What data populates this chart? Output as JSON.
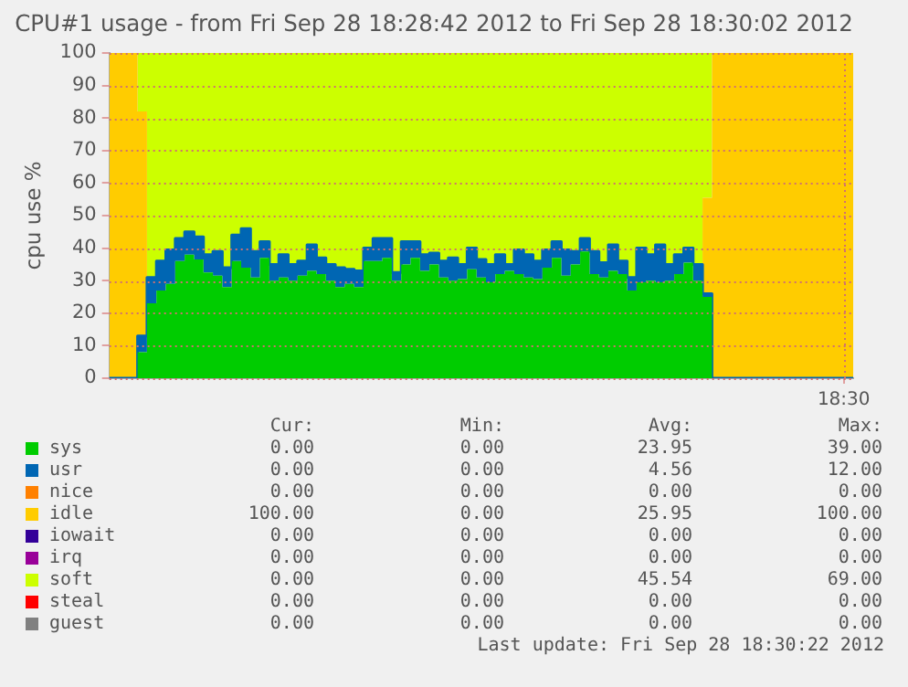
{
  "chart_data": {
    "type": "area",
    "stacked": true,
    "title": "CPU#1 usage - from Fri Sep 28 18:28:42 2012 to Fri Sep 28 18:30:02 2012",
    "ylabel": "cpu use %",
    "categories": [
      null,
      null,
      null,
      null,
      null,
      null,
      null,
      null,
      null,
      null,
      null,
      null,
      null,
      null,
      null,
      null,
      null,
      null,
      null,
      null,
      null,
      null,
      null,
      null,
      null,
      null,
      null,
      null,
      null,
      null,
      null,
      null,
      null,
      null,
      null,
      null,
      null,
      null,
      null,
      null,
      null,
      null,
      null,
      null,
      null,
      null,
      null,
      null,
      null,
      null,
      null,
      null,
      null,
      null,
      null,
      null,
      null,
      null,
      null,
      null,
      null,
      null,
      null,
      null,
      null,
      null,
      null,
      null,
      null,
      null,
      null,
      null,
      null,
      null,
      null,
      null,
      null,
      null,
      "18:30",
      null
    ],
    "ylim": [
      0,
      100
    ],
    "yticks": [
      0,
      10,
      20,
      30,
      40,
      50,
      60,
      70,
      80,
      90,
      100
    ],
    "grid": true,
    "legend": "bottom",
    "marker": "none",
    "series": [
      {
        "name": "sys",
        "color": "#00cc00",
        "values": [
          0,
          0,
          0,
          0,
          8,
          23,
          27,
          29,
          36,
          38,
          36.5,
          32.5,
          31.5,
          28,
          36,
          34,
          31,
          37,
          30,
          31,
          30,
          31.5,
          33,
          32,
          30,
          28,
          29,
          28,
          36,
          36,
          37,
          30,
          35,
          37,
          33,
          35,
          31,
          30,
          30.5,
          33.5,
          31,
          29.5,
          32,
          33,
          32,
          31,
          30.5,
          34,
          37,
          31.5,
          35,
          39,
          32,
          31,
          33,
          32,
          27,
          29.5,
          30,
          29.5,
          30,
          32,
          35.5,
          30,
          25,
          0,
          0,
          0,
          0,
          0,
          0,
          0,
          0,
          0,
          0,
          0,
          0,
          0,
          0,
          0
        ]
      },
      {
        "name": "usr",
        "color": "#0066b3",
        "values": [
          0,
          0,
          0,
          0,
          5,
          8,
          9,
          10.5,
          7,
          7,
          7,
          5.5,
          7.5,
          6,
          8,
          12,
          8,
          5,
          5,
          7,
          5,
          4.5,
          8,
          5,
          5,
          6,
          4.5,
          5,
          4,
          7,
          6,
          2.5,
          7,
          5,
          5,
          3.5,
          5,
          7,
          4.5,
          6.5,
          5.5,
          5.5,
          6,
          2,
          7.5,
          7,
          5.5,
          5.5,
          5,
          8,
          4,
          4,
          7,
          4.5,
          8,
          4,
          4,
          10.5,
          8,
          11.5,
          5,
          6,
          4.5,
          5,
          1,
          0,
          0,
          0,
          0,
          0,
          0,
          0,
          0,
          0,
          0,
          0,
          0,
          0,
          0,
          0
        ]
      },
      {
        "name": "nice",
        "color": "#ff8000",
        "values": [
          null,
          null,
          null,
          null,
          null,
          null,
          null,
          null,
          null,
          null,
          null,
          null,
          null,
          null,
          null,
          null,
          null,
          null,
          null,
          null,
          null,
          null,
          null,
          null,
          null,
          null,
          null,
          null,
          null,
          null,
          null,
          null,
          null,
          null,
          null,
          null,
          null,
          null,
          null,
          null,
          null,
          null,
          null,
          null,
          null,
          null,
          null,
          null,
          null,
          null,
          null,
          null,
          null,
          null,
          null,
          null,
          null,
          null,
          null,
          null,
          null,
          null,
          null,
          null,
          null,
          null,
          null,
          null,
          null,
          null,
          null,
          null,
          null,
          null,
          null,
          null,
          null,
          null,
          null,
          null
        ]
      },
      {
        "name": "idle",
        "color": "#ffcc00",
        "values": [
          100,
          100,
          100,
          100,
          69,
          0,
          0,
          0,
          0,
          0,
          0,
          0,
          0,
          0,
          0,
          0,
          0,
          0,
          0,
          0,
          0,
          0,
          0,
          0,
          0,
          0,
          0,
          0,
          0,
          0,
          0,
          0,
          0,
          0,
          0,
          0,
          0,
          0,
          0,
          0,
          0,
          0,
          0,
          0,
          0,
          0,
          0,
          0,
          0,
          0,
          0,
          0,
          0,
          0,
          0,
          0,
          0,
          0,
          0,
          0,
          0,
          0,
          0,
          0,
          29.5,
          100,
          100,
          100,
          100,
          100,
          100,
          100,
          100,
          100,
          100,
          100,
          100,
          100,
          100,
          100
        ]
      },
      {
        "name": "iowait",
        "color": "#330099",
        "values": [
          null,
          null,
          null,
          null,
          null,
          null,
          null,
          null,
          null,
          null,
          null,
          null,
          null,
          null,
          null,
          null,
          null,
          null,
          null,
          null,
          null,
          null,
          null,
          null,
          null,
          null,
          null,
          null,
          null,
          null,
          null,
          null,
          null,
          null,
          null,
          null,
          null,
          null,
          null,
          null,
          null,
          null,
          null,
          null,
          null,
          null,
          null,
          null,
          null,
          null,
          null,
          null,
          null,
          null,
          null,
          null,
          null,
          null,
          null,
          null,
          null,
          null,
          null,
          null,
          null,
          null,
          null,
          null,
          null,
          null,
          null,
          null,
          null,
          null,
          null,
          null,
          null,
          null,
          null,
          null
        ]
      },
      {
        "name": "irq",
        "color": "#990099",
        "values": [
          null,
          null,
          null,
          null,
          null,
          null,
          null,
          null,
          null,
          null,
          null,
          null,
          null,
          null,
          null,
          null,
          null,
          null,
          null,
          null,
          null,
          null,
          null,
          null,
          null,
          null,
          null,
          null,
          null,
          null,
          null,
          null,
          null,
          null,
          null,
          null,
          null,
          null,
          null,
          null,
          null,
          null,
          null,
          null,
          null,
          null,
          null,
          null,
          null,
          null,
          null,
          null,
          null,
          null,
          null,
          null,
          null,
          null,
          null,
          null,
          null,
          null,
          null,
          null,
          null,
          null,
          null,
          null,
          null,
          null,
          null,
          null,
          null,
          null,
          null,
          null,
          null,
          null,
          null,
          null
        ]
      },
      {
        "name": "soft",
        "color": "#ccff00",
        "values": [
          0,
          0,
          0,
          0,
          18,
          69,
          64,
          60.5,
          57,
          55,
          56.5,
          62,
          61,
          66,
          56,
          54,
          61,
          58,
          65,
          62,
          65,
          64,
          59,
          63,
          65,
          66,
          66.5,
          67,
          60,
          57,
          57,
          67.5,
          58,
          58,
          62,
          61.5,
          64,
          63,
          65,
          60,
          63.5,
          65,
          62,
          65,
          60.5,
          62,
          64,
          60.5,
          58,
          60.5,
          61,
          57,
          61,
          64.5,
          59,
          64,
          69,
          60,
          62,
          59,
          65,
          62,
          60,
          65,
          44.5,
          0,
          0,
          0,
          0,
          0,
          0,
          0,
          0,
          0,
          0,
          0,
          0,
          0,
          0,
          0
        ]
      },
      {
        "name": "steal",
        "color": "#ff0000",
        "values": [
          null,
          null,
          null,
          null,
          null,
          null,
          null,
          null,
          null,
          null,
          null,
          null,
          null,
          null,
          null,
          null,
          null,
          null,
          null,
          null,
          null,
          null,
          null,
          null,
          null,
          null,
          null,
          null,
          null,
          null,
          null,
          null,
          null,
          null,
          null,
          null,
          null,
          null,
          null,
          null,
          null,
          null,
          null,
          null,
          null,
          null,
          null,
          null,
          null,
          null,
          null,
          null,
          null,
          null,
          null,
          null,
          null,
          null,
          null,
          null,
          null,
          null,
          null,
          null,
          null,
          null,
          null,
          null,
          null,
          null,
          null,
          null,
          null,
          null,
          null,
          null,
          null,
          null,
          null,
          null
        ]
      },
      {
        "name": "guest",
        "color": "#808080",
        "values": [
          null,
          null,
          null,
          null,
          null,
          null,
          null,
          null,
          null,
          null,
          null,
          null,
          null,
          null,
          null,
          null,
          null,
          null,
          null,
          null,
          null,
          null,
          null,
          null,
          null,
          null,
          null,
          null,
          null,
          null,
          null,
          null,
          null,
          null,
          null,
          null,
          null,
          null,
          null,
          null,
          null,
          null,
          null,
          null,
          null,
          null,
          null,
          null,
          null,
          null,
          null,
          null,
          null,
          null,
          null,
          null,
          null,
          null,
          null,
          null,
          null,
          null,
          null,
          null,
          null,
          null,
          null,
          null,
          null,
          null,
          null,
          null,
          null,
          null,
          null,
          null,
          null,
          null,
          null,
          null
        ]
      }
    ],
    "annotations": [
      "Cur:",
      "Min:",
      "Avg:",
      "Max:",
      "0.00",
      "0.00",
      "23.95",
      "39.00",
      "0.00",
      "0.00",
      "4.56",
      "12.00",
      "0.00",
      "0.00",
      "0.00",
      "0.00",
      "100.00",
      "0.00",
      "25.95",
      "100.00",
      "0.00",
      "0.00",
      "0.00",
      "0.00",
      "0.00",
      "0.00",
      "0.00",
      "0.00",
      "0.00",
      "0.00",
      "45.54",
      "69.00",
      "0.00",
      "0.00",
      "0.00",
      "0.00",
      "0.00",
      "0.00",
      "0.00",
      "0.00",
      "Last update: Fri Sep 28 18:30:22 2012"
    ]
  }
}
